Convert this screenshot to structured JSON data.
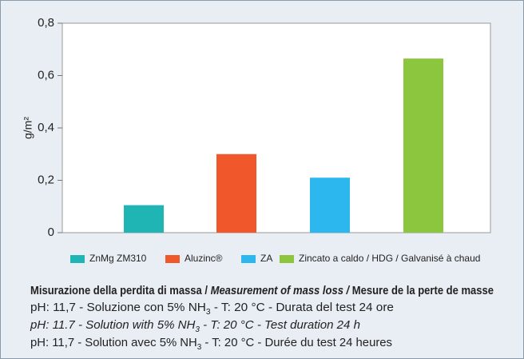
{
  "chart_data": {
    "type": "bar",
    "ylabel": "g/m²",
    "ylim": [
      0,
      0.8
    ],
    "yticks": [
      {
        "value": 0,
        "label": "0"
      },
      {
        "value": 0.2,
        "label": "0,2"
      },
      {
        "value": 0.4,
        "label": "0,4"
      },
      {
        "value": 0.6,
        "label": "0,6"
      },
      {
        "value": 0.8,
        "label": "0,8"
      }
    ],
    "series": [
      {
        "name": "ZnMg ZM310",
        "color": "#1fb5b5",
        "values": [
          0.105
        ]
      },
      {
        "name": "Aluzinc®",
        "color": "#f0582b",
        "values": [
          0.3
        ]
      },
      {
        "name": "ZA",
        "color": "#2cb8ee",
        "values": [
          0.21
        ]
      },
      {
        "name": "Zincato a caldo / HDG / Galvanisé à chaud",
        "color": "#8cc63f",
        "values": [
          0.665
        ]
      }
    ]
  },
  "caption": {
    "lines": [
      [
        "Misurazione della perdita di massa / ",
        "Measurement of mass loss /",
        " Mesure de la perte de masse"
      ],
      [
        "pH: 11,7 - Soluzione con 5% NH",
        "3",
        " - T: 20 °C - Durata del test 24 ore"
      ],
      [
        "pH: 11.7 - Solution with 5% NH",
        "3",
        " - T: 20 °C - Test duration 24 h"
      ],
      [
        "pH: 11,7 - Solution avec 5% NH",
        "3",
        " - T: 20 °C - Durée du test 24 heures"
      ]
    ]
  }
}
